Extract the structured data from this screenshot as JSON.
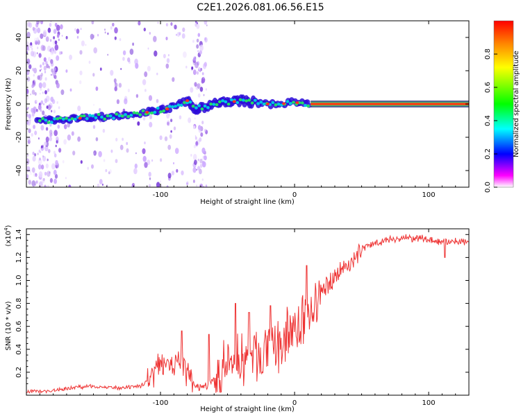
{
  "figure_title": "C2E1.2026.081.06.56.E15",
  "chart_data": [
    {
      "type": "heatmap",
      "title": "C2E1.2026.081.06.56.E15",
      "xlabel": "Height of straight line (km)",
      "ylabel": "Frequency (Hz)",
      "xlim": [
        -200,
        130
      ],
      "ylim": [
        -50,
        50
      ],
      "x_ticks": [
        -100,
        0,
        100
      ],
      "x_tick_labels": [
        "-100",
        "0",
        "100"
      ],
      "y_ticks": [
        -40,
        -20,
        0,
        20,
        40
      ],
      "y_tick_labels": [
        "-40",
        "-20",
        "0",
        "20",
        "40"
      ],
      "ridge": {
        "x": [
          -190,
          -170,
          -150,
          -130,
          -110,
          -95,
          -80,
          -75,
          -70,
          -60,
          -50,
          -40,
          -30,
          -20,
          -10,
          0,
          10,
          20,
          60,
          100,
          130
        ],
        "y": [
          -10,
          -9,
          -8,
          -7,
          -5,
          -3,
          2,
          -3,
          -2,
          0,
          1,
          2,
          1,
          0,
          0,
          1,
          0,
          0,
          0,
          0,
          0
        ]
      },
      "colorbar": {
        "label": "Normalized spectral amplitude",
        "range": [
          0,
          1
        ],
        "ticks": [
          0.0,
          0.2,
          0.4,
          0.6,
          0.8
        ],
        "tick_labels": [
          "0.0",
          "0.2",
          "0.4",
          "0.6",
          "0.8"
        ],
        "colors": [
          "#ffffff",
          "#ff00ff",
          "#0000ff",
          "#00ffff",
          "#00ff00",
          "#ffff00",
          "#ff8800",
          "#ff0000"
        ]
      }
    },
    {
      "type": "line",
      "xlabel": "Height of straight line (km)",
      "ylabel": "SNR (10 * v/v)",
      "y_scale_label": "(x10^4)",
      "xlim": [
        -200,
        130
      ],
      "ylim": [
        0,
        1.45
      ],
      "x_ticks": [
        -100,
        0,
        100
      ],
      "x_tick_labels": [
        "-100",
        "0",
        "100"
      ],
      "y_ticks": [
        0.2,
        0.4,
        0.6,
        0.8,
        1.0,
        1.2,
        1.4
      ],
      "y_tick_labels": [
        "0.2",
        "0.4",
        "0.6",
        "0.8",
        "1.0",
        "1.2",
        "1.4"
      ],
      "color": "#ee3333",
      "series": [
        {
          "name": "SNR",
          "x": [
            -200,
            -180,
            -165,
            -150,
            -130,
            -115,
            -108,
            -102,
            -96,
            -90,
            -85,
            -80,
            -75,
            -70,
            -65,
            -60,
            -55,
            -50,
            -45,
            -40,
            -35,
            -30,
            -25,
            -20,
            -15,
            -10,
            -5,
            0,
            5,
            10,
            15,
            20,
            25,
            30,
            35,
            40,
            45,
            50,
            60,
            70,
            80,
            90,
            100,
            110,
            120,
            130
          ],
          "y": [
            0.03,
            0.04,
            0.07,
            0.08,
            0.06,
            0.08,
            0.15,
            0.28,
            0.33,
            0.25,
            0.3,
            0.2,
            0.08,
            0.07,
            0.09,
            0.13,
            0.2,
            0.28,
            0.3,
            0.35,
            0.34,
            0.38,
            0.36,
            0.4,
            0.42,
            0.48,
            0.53,
            0.6,
            0.65,
            0.7,
            0.78,
            0.9,
            0.98,
            1.05,
            1.1,
            1.15,
            1.18,
            1.28,
            1.33,
            1.36,
            1.37,
            1.37,
            1.36,
            1.34,
            1.34,
            1.35
          ]
        }
      ],
      "spikes": [
        {
          "x": -84,
          "y": 0.56
        },
        {
          "x": -64,
          "y": 0.53
        },
        {
          "x": -44,
          "y": 0.8
        },
        {
          "x": -34,
          "y": 0.72
        },
        {
          "x": -18,
          "y": 0.78
        },
        {
          "x": 9,
          "y": 1.13
        },
        {
          "x": 112,
          "y": 1.2
        }
      ]
    }
  ]
}
